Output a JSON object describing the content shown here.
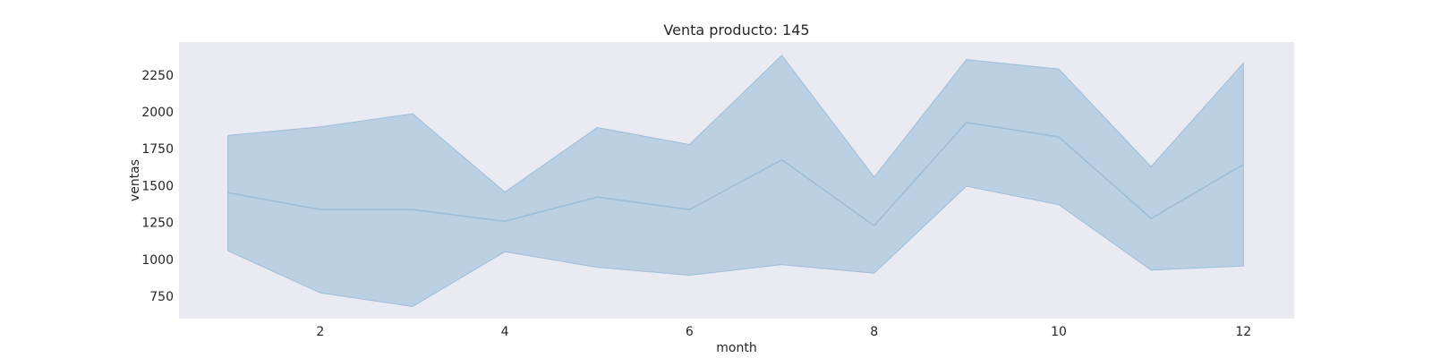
{
  "chart_data": {
    "type": "line",
    "title": "Venta producto: 145",
    "xlabel": "month",
    "ylabel": "ventas",
    "xlim": [
      0.47,
      12.55
    ],
    "ylim": [
      598,
      2473
    ],
    "x_ticks": [
      2,
      4,
      6,
      8,
      10,
      12
    ],
    "y_ticks": [
      750,
      1000,
      1250,
      1500,
      1750,
      2000,
      2250
    ],
    "grid": false,
    "colors": {
      "plot_background": "#eaeaf2",
      "line": "#9bbdd9",
      "band_fill": "#bcd0e3",
      "text": "#262626"
    },
    "x": [
      1,
      2,
      3,
      4,
      5,
      6,
      7,
      8,
      9,
      10,
      11,
      12
    ],
    "series": [
      {
        "values": [
          1452,
          1337,
          1337,
          1258,
          1422,
          1337,
          1675,
          1228,
          1928,
          1830,
          1277,
          1643
        ],
        "lower": [
          1058,
          773,
          680,
          1052,
          946,
          892,
          964,
          906,
          1496,
          1371,
          927,
          955
        ],
        "upper": [
          1840,
          1898,
          1987,
          1456,
          1893,
          1778,
          2383,
          1557,
          2354,
          2290,
          1628,
          2330
        ]
      }
    ]
  }
}
